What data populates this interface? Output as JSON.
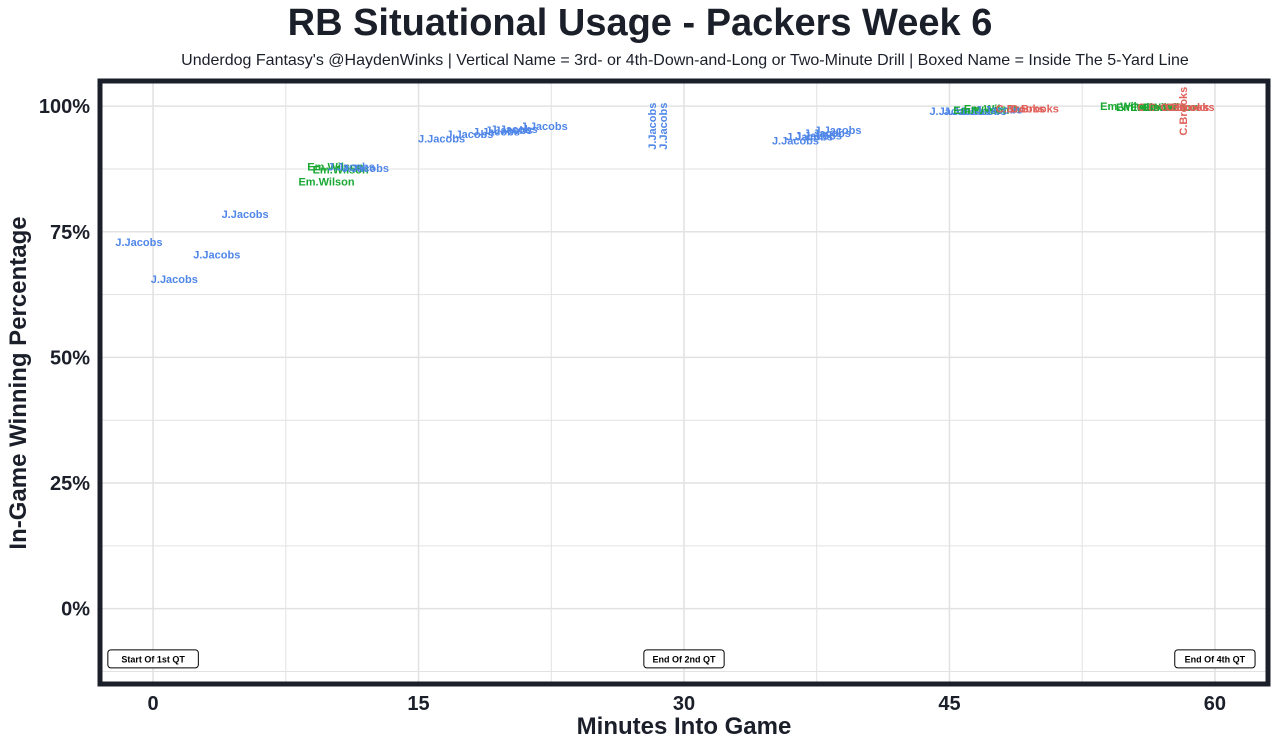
{
  "title": "RB Situational Usage - Packers Week 6",
  "subtitle": "Underdog Fantasy's @HaydenWinks | Vertical Name = 3rd- or 4th-Down-and-Long or Two-Minute Drill | Boxed Name = Inside The 5-Yard Line",
  "colors": {
    "J.Jacobs": "#4f86e8",
    "Em.Wilson": "#19a832",
    "C.Brooks": "#e0605a",
    "frame": "#1b1f2a",
    "grid": "#e2e2e2"
  },
  "chart_data": {
    "type": "scatter",
    "title": "RB Situational Usage - Packers Week 6",
    "xlabel": "Minutes Into Game",
    "ylabel": "In-Game Winning Percentage",
    "xlim": [
      -3,
      63
    ],
    "ylim": [
      -0.15,
      1.05
    ],
    "x_ticks": [
      {
        "value": 0,
        "label": "0"
      },
      {
        "value": 15,
        "label": "15"
      },
      {
        "value": 30,
        "label": "30"
      },
      {
        "value": 45,
        "label": "45"
      },
      {
        "value": 60,
        "label": "60"
      }
    ],
    "y_ticks": [
      {
        "value": 0,
        "label": "0%"
      },
      {
        "value": 0.25,
        "label": "25%"
      },
      {
        "value": 0.5,
        "label": "50%"
      },
      {
        "value": 0.75,
        "label": "75%"
      },
      {
        "value": 1.0,
        "label": "100%"
      }
    ],
    "grid": true,
    "quarter_markers": [
      {
        "x": 0,
        "y": -0.1,
        "label": "Start Of 1st QT"
      },
      {
        "x": 30,
        "y": -0.1,
        "label": "End Of 2nd QT"
      },
      {
        "x": 60,
        "y": -0.1,
        "label": "End Of 4th QT"
      }
    ],
    "points": [
      {
        "player": "J.Jacobs",
        "x": -0.8,
        "y": 0.73,
        "vertical": false
      },
      {
        "player": "J.Jacobs",
        "x": 1.2,
        "y": 0.656,
        "vertical": false
      },
      {
        "player": "J.Jacobs",
        "x": 3.6,
        "y": 0.705,
        "vertical": false
      },
      {
        "player": "J.Jacobs",
        "x": 5.2,
        "y": 0.785,
        "vertical": false
      },
      {
        "player": "Em.Wilson",
        "x": 9.8,
        "y": 0.85,
        "vertical": false
      },
      {
        "player": "Em.Wilson",
        "x": 10.6,
        "y": 0.874,
        "vertical": false
      },
      {
        "player": "Em.Wilson",
        "x": 10.3,
        "y": 0.88,
        "vertical": false
      },
      {
        "player": "J.Jacobs",
        "x": 12.0,
        "y": 0.877,
        "vertical": false
      },
      {
        "player": "J.Jacobs",
        "x": 11.2,
        "y": 0.88,
        "vertical": false
      },
      {
        "player": "J.Jacobs",
        "x": 16.3,
        "y": 0.936,
        "vertical": false
      },
      {
        "player": "J.Jacobs",
        "x": 17.9,
        "y": 0.945,
        "vertical": false
      },
      {
        "player": "J.Jacobs",
        "x": 19.4,
        "y": 0.95,
        "vertical": false
      },
      {
        "player": "J.Jacobs",
        "x": 20.1,
        "y": 0.952,
        "vertical": false
      },
      {
        "player": "J.Jacobs",
        "x": 20.4,
        "y": 0.954,
        "vertical": false
      },
      {
        "player": "J.Jacobs",
        "x": 22.1,
        "y": 0.96,
        "vertical": false
      },
      {
        "player": "J.Jacobs",
        "x": 28.2,
        "y": 0.96,
        "vertical": true
      },
      {
        "player": "J.Jacobs",
        "x": 28.8,
        "y": 0.96,
        "vertical": true
      },
      {
        "player": "J.Jacobs",
        "x": 36.3,
        "y": 0.932,
        "vertical": false
      },
      {
        "player": "J.Jacobs",
        "x": 37.1,
        "y": 0.94,
        "vertical": false
      },
      {
        "player": "J.Jacobs",
        "x": 37.6,
        "y": 0.942,
        "vertical": false
      },
      {
        "player": "J.Jacobs",
        "x": 38.1,
        "y": 0.947,
        "vertical": false
      },
      {
        "player": "J.Jacobs",
        "x": 38.7,
        "y": 0.952,
        "vertical": false
      },
      {
        "player": "J.Jacobs",
        "x": 45.2,
        "y": 0.99,
        "vertical": false
      },
      {
        "player": "J.Jacobs",
        "x": 46.0,
        "y": 0.99,
        "vertical": false
      },
      {
        "player": "J.Jacobs",
        "x": 46.9,
        "y": 0.99,
        "vertical": false
      },
      {
        "player": "Em.Wilson",
        "x": 46.8,
        "y": 0.992,
        "vertical": false
      },
      {
        "player": "Em.Wilson",
        "x": 47.4,
        "y": 0.995,
        "vertical": false
      },
      {
        "player": "J.Jacobs",
        "x": 47.8,
        "y": 0.993,
        "vertical": false
      },
      {
        "player": "C.Brooks",
        "x": 49.0,
        "y": 0.995,
        "vertical": false
      },
      {
        "player": "C.Brooks",
        "x": 49.8,
        "y": 0.995,
        "vertical": false
      },
      {
        "player": "Em.Wilson",
        "x": 55.1,
        "y": 1.0,
        "vertical": false
      },
      {
        "player": "Em.Wilson",
        "x": 56.0,
        "y": 0.998,
        "vertical": false
      },
      {
        "player": "Em.Wilson",
        "x": 56.8,
        "y": 0.998,
        "vertical": false
      },
      {
        "player": "C.Brooks",
        "x": 57.0,
        "y": 0.998,
        "vertical": false
      },
      {
        "player": "Em.Wilson",
        "x": 57.5,
        "y": 0.998,
        "vertical": false
      },
      {
        "player": "C.Brooks",
        "x": 58.3,
        "y": 0.998,
        "vertical": false
      },
      {
        "player": "C.Brooks",
        "x": 58.6,
        "y": 0.998,
        "vertical": false
      },
      {
        "player": "C.Brooks",
        "x": 58.2,
        "y": 0.99,
        "vertical": true
      }
    ]
  }
}
